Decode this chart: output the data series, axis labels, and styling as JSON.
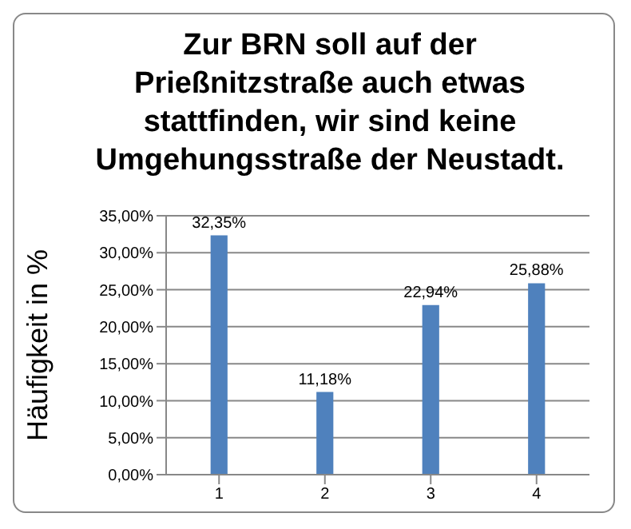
{
  "chart_data": {
    "type": "bar",
    "title": "Zur BRN soll auf der Prießnitzstraße auch etwas stattfinden, wir sind keine Umgehungsstraße der Neustadt.",
    "ylabel": "Häufigkeit in %",
    "categories": [
      "1",
      "2",
      "3",
      "4"
    ],
    "values": [
      32.35,
      11.18,
      22.94,
      25.88
    ],
    "value_labels": [
      "32,35%",
      "11,18%",
      "22,94%",
      "25,88%"
    ],
    "color": "#4f81bd",
    "ylim": [
      0,
      35
    ],
    "yticks": [
      {
        "value": 0,
        "label": "0,00%"
      },
      {
        "value": 5,
        "label": "5,00%"
      },
      {
        "value": 10,
        "label": "10,00%"
      },
      {
        "value": 15,
        "label": "15,00%"
      },
      {
        "value": 20,
        "label": "20,00%"
      },
      {
        "value": 25,
        "label": "25,00%"
      },
      {
        "value": 30,
        "label": "30,00%"
      },
      {
        "value": 35,
        "label": "35,00%"
      }
    ],
    "grid": "y",
    "legend": false
  }
}
